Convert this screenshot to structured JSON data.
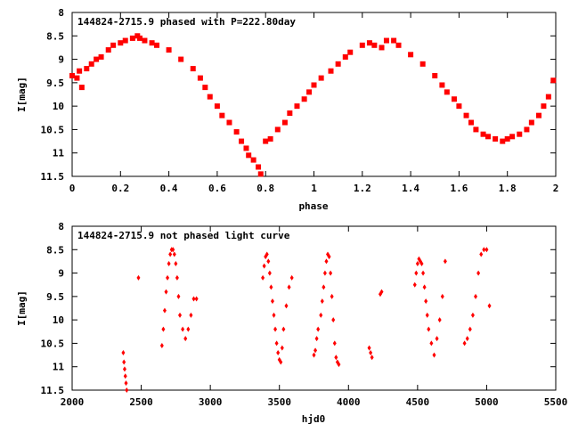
{
  "chart_data": [
    {
      "type": "scatter",
      "title": "144824-2715.9 phased with P=222.80day",
      "xlabel": "phase",
      "ylabel": "I[mag]",
      "xlim": [
        0,
        2
      ],
      "ylim": [
        8,
        11.5
      ],
      "y_inverted": true,
      "xticks": [
        0,
        0.2,
        0.4,
        0.6,
        0.8,
        1,
        1.2,
        1.4,
        1.6,
        1.8,
        2
      ],
      "xtick_labels": [
        "0",
        "0.2",
        "0.4",
        "0.6",
        "0.8",
        "1",
        "1.2",
        "1.4",
        "1.6",
        "1.8",
        "2"
      ],
      "yticks": [
        8,
        8.5,
        9,
        9.5,
        10,
        10.5,
        11,
        11.5
      ],
      "ytick_labels": [
        "8",
        "8.5",
        "9",
        "9.5",
        "10",
        "10.5",
        "11",
        "11.5"
      ],
      "marker_color": "#ff0000",
      "series": [
        {
          "x": [
            0.0,
            0.02,
            0.03,
            0.04,
            0.06,
            0.08,
            0.1,
            0.12,
            0.15,
            0.17,
            0.2,
            0.22,
            0.25,
            0.27,
            0.28,
            0.3,
            0.33,
            0.35,
            0.4,
            0.45,
            0.5,
            0.53,
            0.55,
            0.57,
            0.6,
            0.62,
            0.65,
            0.68,
            0.7,
            0.72,
            0.73,
            0.75,
            0.77,
            0.78,
            0.8,
            0.82,
            0.85,
            0.88,
            0.9,
            0.93,
            0.96,
            0.98,
            1.0,
            1.03,
            1.07,
            1.1,
            1.13,
            1.15,
            1.2,
            1.23,
            1.25,
            1.28,
            1.3,
            1.33,
            1.35,
            1.4,
            1.45,
            1.5,
            1.53,
            1.55,
            1.58,
            1.6,
            1.63,
            1.65,
            1.67,
            1.7,
            1.72,
            1.75,
            1.78,
            1.8,
            1.82,
            1.85,
            1.88,
            1.9,
            1.93,
            1.95,
            1.97,
            1.99
          ],
          "y": [
            9.35,
            9.4,
            9.25,
            9.6,
            9.2,
            9.1,
            9.0,
            8.95,
            8.8,
            8.7,
            8.65,
            8.6,
            8.55,
            8.5,
            8.55,
            8.6,
            8.65,
            8.7,
            8.8,
            9.0,
            9.2,
            9.4,
            9.6,
            9.8,
            10.0,
            10.2,
            10.35,
            10.55,
            10.75,
            10.9,
            11.05,
            11.15,
            11.3,
            11.45,
            10.75,
            10.7,
            10.5,
            10.35,
            10.15,
            10.0,
            9.85,
            9.7,
            9.55,
            9.4,
            9.25,
            9.1,
            8.95,
            8.85,
            8.7,
            8.65,
            8.7,
            8.75,
            8.6,
            8.6,
            8.7,
            8.9,
            9.1,
            9.35,
            9.55,
            9.7,
            9.85,
            10.0,
            10.2,
            10.35,
            10.5,
            10.6,
            10.65,
            10.7,
            10.75,
            10.7,
            10.65,
            10.6,
            10.5,
            10.35,
            10.2,
            10.0,
            9.8,
            9.45
          ]
        }
      ]
    },
    {
      "type": "scatter",
      "title": "144824-2715.9 not phased light curve",
      "xlabel": "hjd0",
      "ylabel": "I[mag]",
      "xlim": [
        2000,
        5500
      ],
      "ylim": [
        8,
        11.5
      ],
      "y_inverted": true,
      "xticks": [
        2000,
        2500,
        3000,
        3500,
        4000,
        4500,
        5000,
        5500
      ],
      "xtick_labels": [
        "2000",
        "2500",
        "3000",
        "3500",
        "4000",
        "4500",
        "5000",
        "5500"
      ],
      "yticks": [
        8,
        8.5,
        9,
        9.5,
        10,
        10.5,
        11,
        11.5
      ],
      "ytick_labels": [
        "8",
        "8.5",
        "9",
        "9.5",
        "10",
        "10.5",
        "11",
        "11.5"
      ],
      "marker_color": "#ff0000",
      "series": [
        {
          "x": [
            2370,
            2375,
            2380,
            2385,
            2390,
            2395,
            2480,
            2650,
            2660,
            2670,
            2680,
            2690,
            2700,
            2710,
            2720,
            2730,
            2740,
            2750,
            2760,
            2770,
            2780,
            2800,
            2820,
            2840,
            2860,
            2880,
            2900,
            3380,
            3390,
            3400,
            3410,
            3420,
            3430,
            3440,
            3450,
            3460,
            3470,
            3480,
            3490,
            3500,
            3510,
            3520,
            3530,
            3550,
            3570,
            3590,
            3750,
            3760,
            3770,
            3780,
            3800,
            3810,
            3820,
            3830,
            3840,
            3850,
            3860,
            3870,
            3880,
            3890,
            3900,
            3910,
            3920,
            3930,
            4150,
            4160,
            4170,
            4230,
            4240,
            4480,
            4490,
            4500,
            4510,
            4520,
            4530,
            4540,
            4550,
            4560,
            4570,
            4580,
            4600,
            4620,
            4640,
            4660,
            4680,
            4700,
            4840,
            4860,
            4880,
            4900,
            4920,
            4940,
            4960,
            4980,
            5000,
            5020
          ],
          "y": [
            10.7,
            10.9,
            11.05,
            11.2,
            11.35,
            11.5,
            9.1,
            10.55,
            10.2,
            9.8,
            9.4,
            9.1,
            8.8,
            8.6,
            8.5,
            8.5,
            8.6,
            8.8,
            9.1,
            9.5,
            9.9,
            10.2,
            10.4,
            10.2,
            9.9,
            9.55,
            9.55,
            9.1,
            8.85,
            8.65,
            8.6,
            8.75,
            9.0,
            9.3,
            9.6,
            9.9,
            10.2,
            10.5,
            10.7,
            10.85,
            10.9,
            10.6,
            10.2,
            9.7,
            9.3,
            9.1,
            10.75,
            10.65,
            10.4,
            10.2,
            9.9,
            9.6,
            9.3,
            9.0,
            8.75,
            8.6,
            8.65,
            9.0,
            9.5,
            10.0,
            10.5,
            10.8,
            10.9,
            10.95,
            10.6,
            10.7,
            10.8,
            9.45,
            9.4,
            9.25,
            9.0,
            8.8,
            8.7,
            8.75,
            8.8,
            9.0,
            9.3,
            9.6,
            9.9,
            10.2,
            10.5,
            10.75,
            10.4,
            10.0,
            9.5,
            8.75,
            10.5,
            10.4,
            10.2,
            9.9,
            9.5,
            9.0,
            8.6,
            8.5,
            8.5,
            9.7
          ]
        }
      ]
    }
  ]
}
